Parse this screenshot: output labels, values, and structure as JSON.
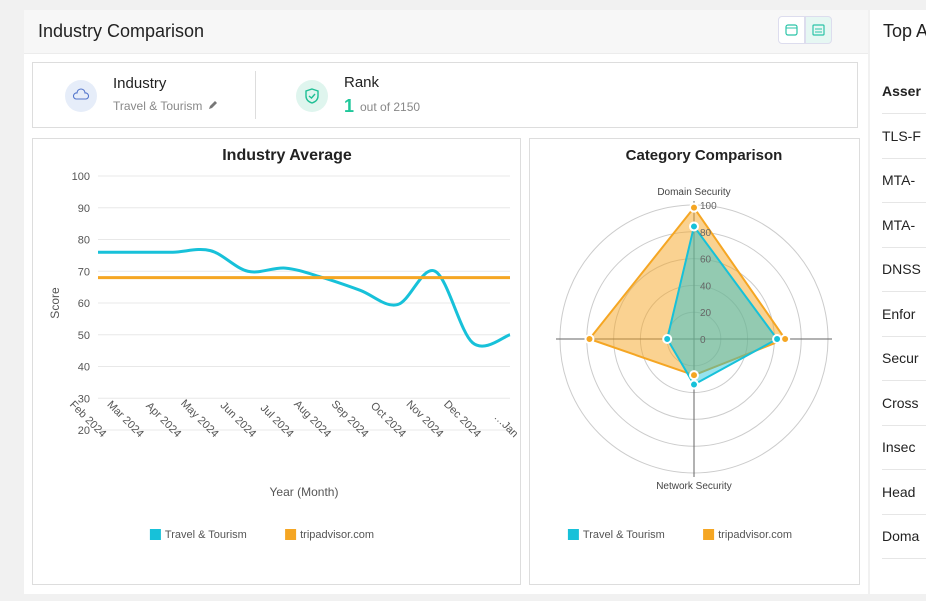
{
  "header": {
    "title": "Industry Comparison"
  },
  "industry": {
    "label": "Industry",
    "value": "Travel & Tourism"
  },
  "rank": {
    "label": "Rank",
    "value": 1,
    "suffix": "out of 2150"
  },
  "side_panel": {
    "title": "Top A",
    "rows": [
      "Asser",
      "TLS-F",
      "MTA-",
      "MTA-",
      "DNSS",
      "Enfor",
      "Secur",
      "Cross",
      "Insec",
      "Head",
      "Doma"
    ]
  },
  "chart_data": [
    {
      "type": "line",
      "title": "Industry Average",
      "y_label": "Score",
      "x_label": "Year (Month)",
      "categories": [
        "Feb 2024",
        "Mar 2024",
        "Apr 2024",
        "May 2024",
        "Jun 2024",
        "Jul 2024",
        "Aug 2024",
        "Sep 2024",
        "Oct 2024",
        "Nov 2024",
        "Dec 2024",
        "Jan…"
      ],
      "series": [
        {
          "name": "Travel & Tourism",
          "color": "#17c1d9",
          "values": [
            76,
            76,
            76,
            76.5,
            70,
            71,
            68,
            64,
            59.5,
            70,
            47.5,
            50
          ]
        },
        {
          "name": "tripadvisor.com",
          "color": "#f5a623",
          "values": [
            68,
            68,
            68,
            68,
            68,
            68,
            68,
            68,
            68,
            68,
            68,
            68
          ]
        }
      ],
      "ylim": [
        20,
        100
      ],
      "yticks": [
        20,
        30,
        40,
        50,
        60,
        70,
        80,
        90,
        100
      ],
      "grid": true
    },
    {
      "type": "radar",
      "title": "Category Comparison",
      "categories": [
        "Domain Security",
        null,
        "Network Security",
        null
      ],
      "series": [
        {
          "name": "Travel & Tourism",
          "color": "#17c1d9",
          "values": [
            84,
            62,
            34,
            20
          ]
        },
        {
          "name": "tripadvisor.com",
          "color": "#f5a623",
          "values": [
            98,
            68,
            27,
            78
          ]
        }
      ],
      "rlim": [
        0,
        100
      ],
      "rticks": [
        0,
        20,
        40,
        60,
        80,
        100
      ],
      "grid": true
    }
  ]
}
